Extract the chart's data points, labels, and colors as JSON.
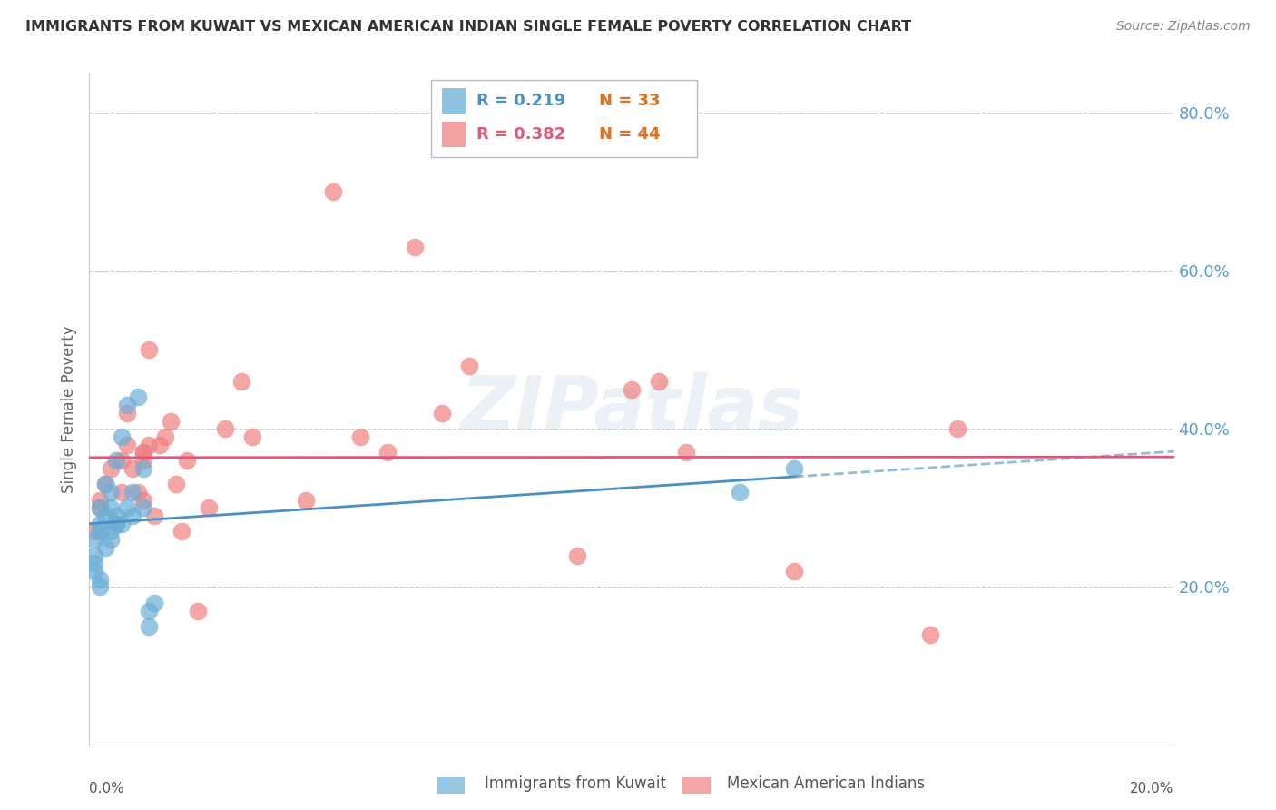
{
  "title": "IMMIGRANTS FROM KUWAIT VS MEXICAN AMERICAN INDIAN SINGLE FEMALE POVERTY CORRELATION CHART",
  "source": "Source: ZipAtlas.com",
  "ylabel": "Single Female Poverty",
  "legend_series1_label": "Immigrants from Kuwait",
  "legend_series2_label": "Mexican American Indians",
  "legend_R1": "0.219",
  "legend_N1": "33",
  "legend_R2": "0.382",
  "legend_N2": "44",
  "color_blue": "#6aaed6",
  "color_pink": "#f08080",
  "color_blue_dark": "#4a90c4",
  "color_pink_dark": "#e05878",
  "color_right_axis": "#5b9bd5",
  "background_color": "#ffffff",
  "grid_color": "#cccccc",
  "watermark": "ZIPatlas",
  "xlim": [
    0.0,
    0.2
  ],
  "ylim": [
    0.0,
    0.85
  ],
  "kuwait_x": [
    0.001,
    0.001,
    0.001,
    0.001,
    0.002,
    0.002,
    0.002,
    0.002,
    0.002,
    0.003,
    0.003,
    0.003,
    0.004,
    0.004,
    0.004,
    0.004,
    0.005,
    0.005,
    0.005,
    0.006,
    0.006,
    0.007,
    0.007,
    0.008,
    0.008,
    0.009,
    0.01,
    0.01,
    0.011,
    0.011,
    0.012,
    0.12,
    0.13
  ],
  "kuwait_y": [
    0.22,
    0.23,
    0.24,
    0.26,
    0.2,
    0.21,
    0.27,
    0.28,
    0.3,
    0.25,
    0.29,
    0.33,
    0.26,
    0.27,
    0.3,
    0.32,
    0.28,
    0.29,
    0.36,
    0.28,
    0.39,
    0.3,
    0.43,
    0.29,
    0.32,
    0.44,
    0.3,
    0.35,
    0.15,
    0.17,
    0.18,
    0.32,
    0.35
  ],
  "mex_x": [
    0.001,
    0.002,
    0.002,
    0.003,
    0.004,
    0.005,
    0.006,
    0.006,
    0.007,
    0.007,
    0.008,
    0.009,
    0.01,
    0.01,
    0.01,
    0.01,
    0.011,
    0.011,
    0.012,
    0.013,
    0.014,
    0.015,
    0.016,
    0.017,
    0.018,
    0.02,
    0.022,
    0.025,
    0.028,
    0.03,
    0.04,
    0.045,
    0.05,
    0.055,
    0.06,
    0.065,
    0.07,
    0.09,
    0.1,
    0.105,
    0.11,
    0.13,
    0.155,
    0.16
  ],
  "mex_y": [
    0.27,
    0.3,
    0.31,
    0.33,
    0.35,
    0.28,
    0.32,
    0.36,
    0.38,
    0.42,
    0.35,
    0.32,
    0.36,
    0.37,
    0.31,
    0.37,
    0.38,
    0.5,
    0.29,
    0.38,
    0.39,
    0.41,
    0.33,
    0.27,
    0.36,
    0.17,
    0.3,
    0.4,
    0.46,
    0.39,
    0.31,
    0.7,
    0.39,
    0.37,
    0.63,
    0.42,
    0.48,
    0.24,
    0.45,
    0.46,
    0.37,
    0.22,
    0.14,
    0.4
  ]
}
